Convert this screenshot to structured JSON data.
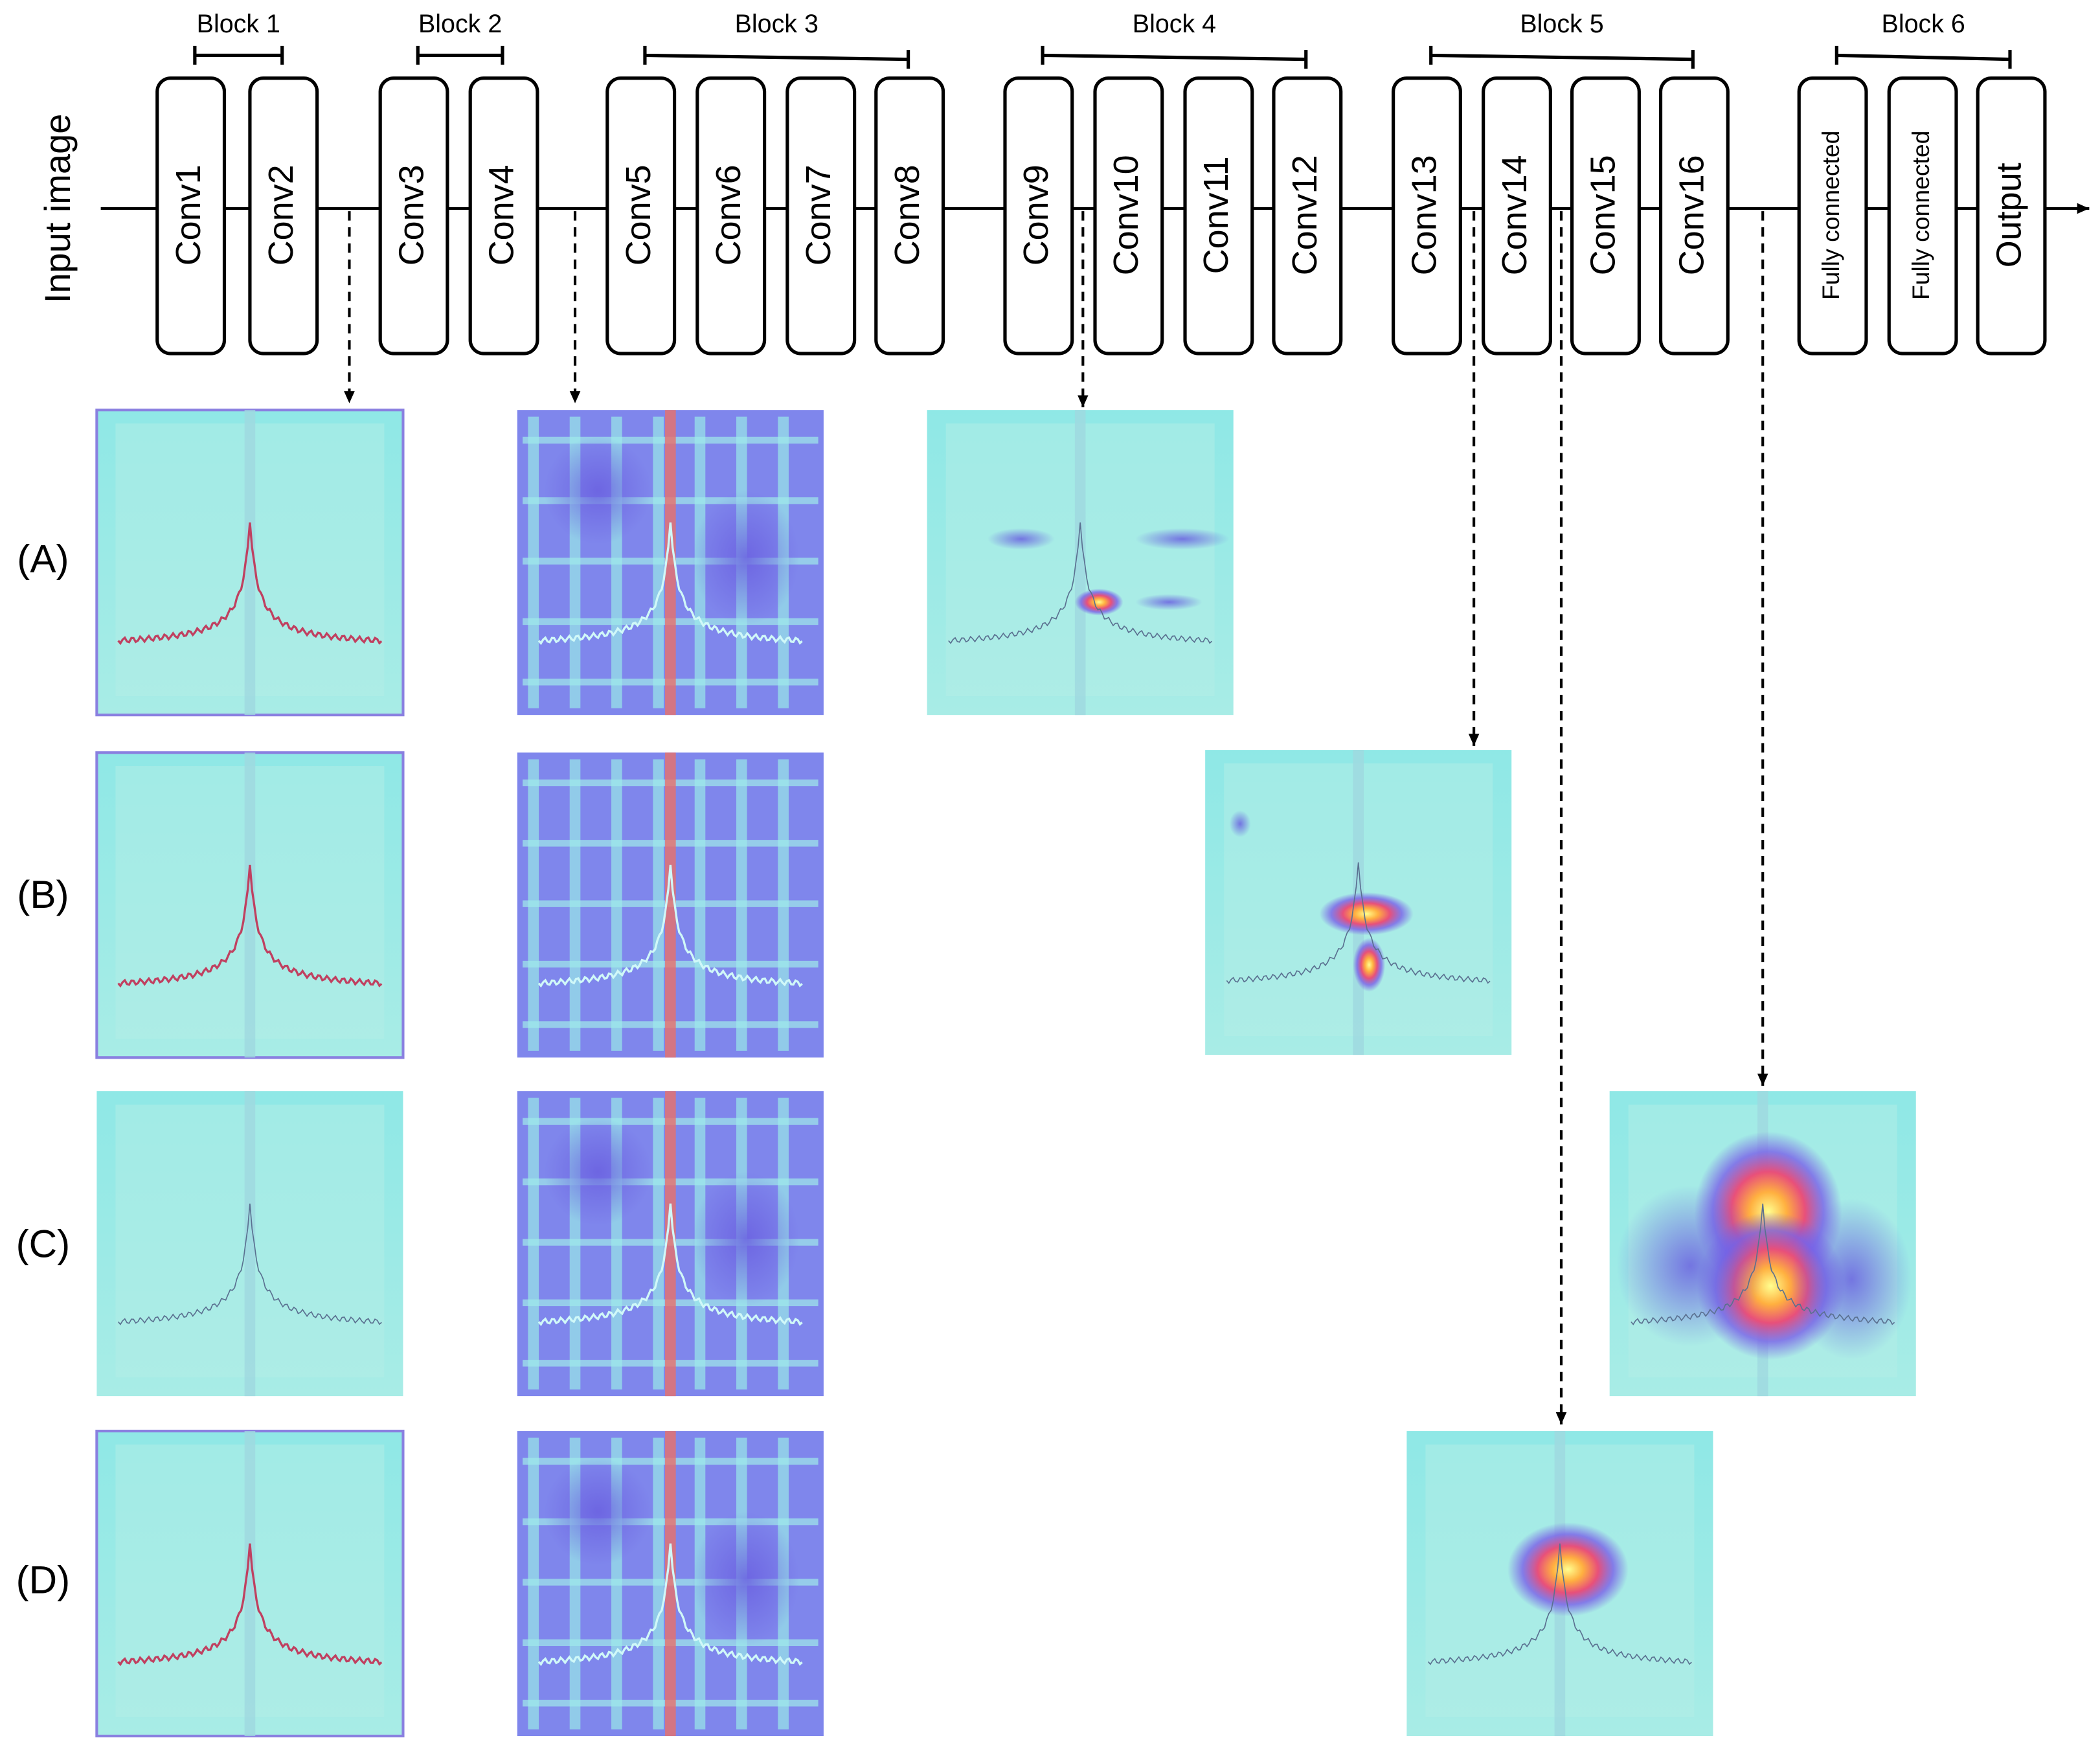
{
  "input_label": "Input image",
  "blocks": [
    {
      "label": "Block 1",
      "layers": [
        "Conv1",
        "Conv2"
      ]
    },
    {
      "label": "Block 2",
      "layers": [
        "Conv3",
        "Conv4"
      ]
    },
    {
      "label": "Block 3",
      "layers": [
        "Conv5",
        "Conv6",
        "Conv7",
        "Conv8"
      ]
    },
    {
      "label": "Block 4",
      "layers": [
        "Conv9",
        "Conv10",
        "Conv11",
        "Conv12"
      ]
    },
    {
      "label": "Block 5",
      "layers": [
        "Conv13",
        "Conv14",
        "Conv15",
        "Conv16"
      ]
    },
    {
      "label": "Block 6",
      "layers": [
        "Fully connected",
        "Fully connected",
        "Output"
      ]
    }
  ],
  "row_labels": [
    "(A)",
    "(B)",
    "(C)",
    "(D)"
  ]
}
